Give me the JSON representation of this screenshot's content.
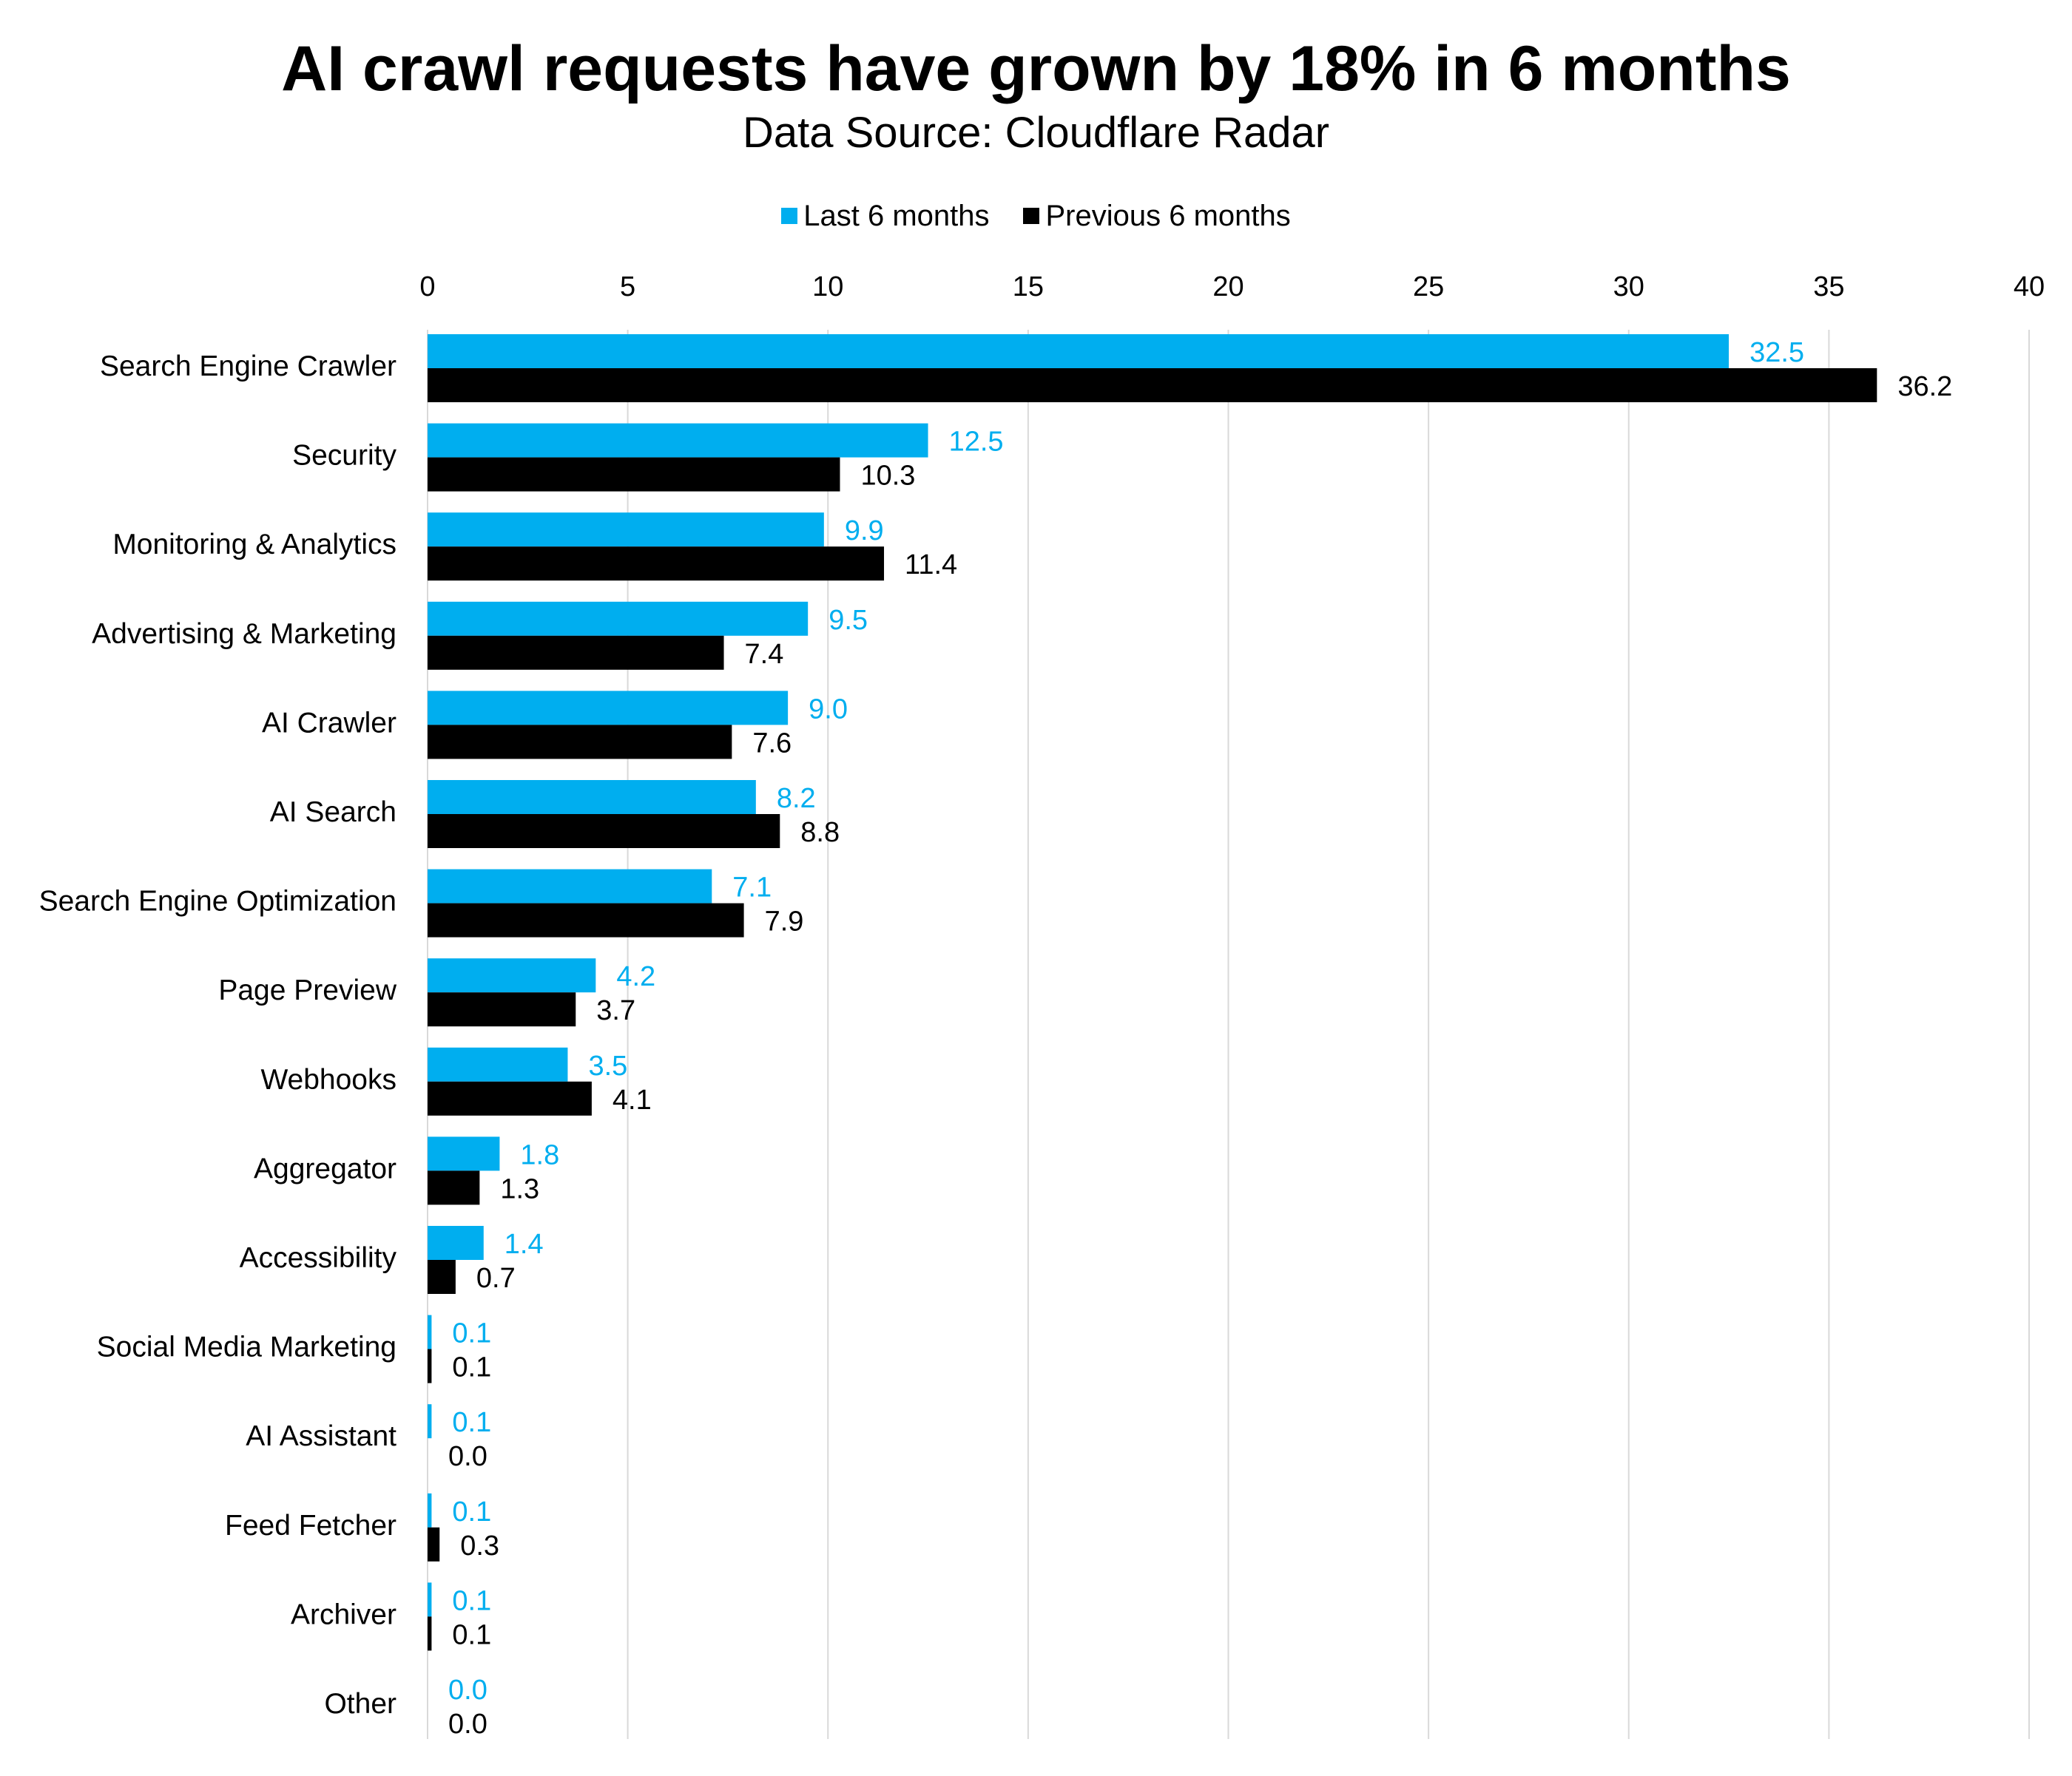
{
  "chart_data": {
    "type": "bar",
    "orientation": "horizontal",
    "title": "AI crawl requests have grown by 18% in 6 months",
    "subtitle": "Data Source: Cloudflare Radar",
    "xlim": [
      0,
      40
    ],
    "x_ticks": [
      "0",
      "5",
      "10",
      "15",
      "20",
      "25",
      "30",
      "35",
      "40"
    ],
    "grid": true,
    "legend_position": "top-center",
    "categories": [
      "Search Engine Crawler",
      "Security",
      "Monitoring & Analytics",
      "Advertising & Marketing",
      "AI Crawler",
      "AI Search",
      "Search Engine Optimization",
      "Page Preview",
      "Webhooks",
      "Aggregator",
      "Accessibility",
      "Social Media Marketing",
      "AI Assistant",
      "Feed Fetcher",
      "Archiver",
      "Other"
    ],
    "series": [
      {
        "name": "Last 6 months",
        "color": "#00aeef",
        "values": [
          32.5,
          12.5,
          9.9,
          9.5,
          9.0,
          8.2,
          7.1,
          4.2,
          3.5,
          1.8,
          1.4,
          0.1,
          0.1,
          0.1,
          0.1,
          0.0
        ],
        "labels": [
          "32.5",
          "12.5",
          "9.9",
          "9.5",
          "9.0",
          "8.2",
          "7.1",
          "4.2",
          "3.5",
          "1.8",
          "1.4",
          "0.1",
          "0.1",
          "0.1",
          "0.1",
          "0.0"
        ]
      },
      {
        "name": "Previous 6 months",
        "color": "#000000",
        "values": [
          36.2,
          10.3,
          11.4,
          7.4,
          7.6,
          8.8,
          7.9,
          3.7,
          4.1,
          1.3,
          0.7,
          0.1,
          0.0,
          0.3,
          0.1,
          0.0
        ],
        "labels": [
          "36.2",
          "10.3",
          "11.4",
          "7.4",
          "7.6",
          "8.8",
          "7.9",
          "3.7",
          "4.1",
          "1.3",
          "0.7",
          "0.1",
          "0.0",
          "0.3",
          "0.1",
          "0.0"
        ]
      }
    ]
  }
}
